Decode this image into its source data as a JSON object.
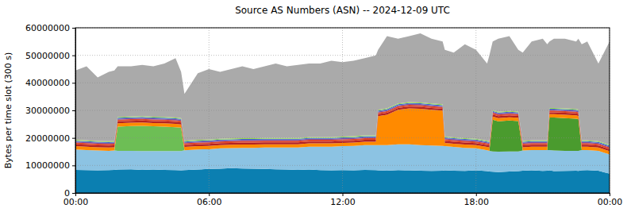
{
  "chart_data": {
    "type": "area",
    "title": "Source AS Numbers (ASN) -- 2024-12-09 UTC",
    "y_label": "Bytes per time slot (300 s)",
    "stacked": true,
    "grid": true,
    "x": [
      0,
      0.5,
      1,
      1.5,
      1.75,
      1.9,
      2.5,
      3,
      3.5,
      4,
      4.5,
      4.75,
      4.9,
      5.5,
      6,
      6.5,
      7,
      7.5,
      8,
      8.5,
      9,
      9.5,
      10,
      10.5,
      11,
      11.5,
      12,
      12.5,
      13,
      13.5,
      13.6,
      14,
      14.5,
      15,
      15.5,
      16,
      16.5,
      16.6,
      17,
      17.5,
      18,
      18.5,
      18.6,
      18.75,
      19,
      19.5,
      19.9,
      20.1,
      20.5,
      21,
      21.2,
      21.3,
      21.5,
      22,
      22.5,
      22.6,
      22.75,
      23,
      23.5,
      24
    ],
    "xlim": [
      0,
      24
    ],
    "xticks": [
      {
        "value": 0,
        "label": "00:00"
      },
      {
        "value": 6,
        "label": "06:00"
      },
      {
        "value": 12,
        "label": "12:00"
      },
      {
        "value": 18,
        "label": "18:00"
      },
      {
        "value": 24,
        "label": "00:00"
      }
    ],
    "ylim": [
      0,
      60000000
    ],
    "yticks": [
      0,
      10000000,
      20000000,
      30000000,
      40000000,
      50000000,
      60000000
    ],
    "series": [
      {
        "color": "#0b7fb1",
        "values": [
          8400000,
          8300000,
          8200000,
          8300000,
          8400000,
          8500000,
          8600000,
          8400000,
          8500000,
          8400000,
          8300000,
          8200000,
          8300000,
          8500000,
          8700000,
          8800000,
          9000000,
          8900000,
          8800000,
          8700000,
          8600000,
          8500000,
          8400000,
          8500000,
          8300000,
          8200000,
          8300000,
          8200000,
          8400000,
          8300000,
          8200000,
          8100000,
          8300000,
          8200000,
          8100000,
          8000000,
          8100000,
          8200000,
          8100000,
          8000000,
          8200000,
          7900000,
          7800000,
          7700000,
          7600000,
          7800000,
          7900000,
          8100000,
          8200000,
          8000000,
          8100000,
          8200000,
          7900000,
          8000000,
          8100000,
          8000000,
          8200000,
          8300000,
          8100000,
          7000000
        ]
      },
      {
        "color": "#8cc3e3",
        "values": [
          7400000,
          7300000,
          7200000,
          7000000,
          7000000,
          6800000,
          6700000,
          6800000,
          6700000,
          6800000,
          6900000,
          7000000,
          7200000,
          7300000,
          7200000,
          7400000,
          7300000,
          7500000,
          7600000,
          7800000,
          7900000,
          8000000,
          8100000,
          8300000,
          8500000,
          8600000,
          8700000,
          8900000,
          9000000,
          9100000,
          9200000,
          9300000,
          9400000,
          9500000,
          9300000,
          9200000,
          9000000,
          8800000,
          8600000,
          8400000,
          8000000,
          7600000,
          7500000,
          7400000,
          7400000,
          7300000,
          7200000,
          7300000,
          7400000,
          7600000,
          7500000,
          7400000,
          7500000,
          7300000,
          7200000,
          7300000,
          7400000,
          7300000,
          7200000,
          7000000
        ]
      },
      {
        "color": "#6dbe55",
        "values": [
          0,
          0,
          0,
          0,
          0,
          8800000,
          9000000,
          9200000,
          9000000,
          8900000,
          8700000,
          8500000,
          0,
          0,
          0,
          0,
          0,
          0,
          0,
          0,
          0,
          0,
          0,
          0,
          0,
          0,
          0,
          0,
          0,
          0,
          0,
          0,
          0,
          0,
          0,
          0,
          0,
          0,
          0,
          0,
          0,
          0,
          0,
          0,
          0,
          0,
          0,
          0,
          0,
          0,
          0,
          0,
          0,
          0,
          0,
          0,
          0,
          0,
          0,
          0
        ]
      },
      {
        "color": "#4a9b2e",
        "values": [
          0,
          0,
          0,
          0,
          0,
          0,
          0,
          0,
          0,
          0,
          0,
          0,
          0,
          0,
          0,
          0,
          0,
          0,
          0,
          0,
          0,
          0,
          0,
          0,
          0,
          0,
          0,
          0,
          0,
          0,
          0,
          0,
          0,
          0,
          0,
          0,
          0,
          0,
          0,
          0,
          0,
          0,
          0,
          11500000,
          11000000,
          11200000,
          11000000,
          0,
          0,
          0,
          0,
          11800000,
          12000000,
          11900000,
          11700000,
          11500000,
          0,
          0,
          0,
          0
        ]
      },
      {
        "color": "#ff8a00",
        "values": [
          1200000,
          1200000,
          1200000,
          1200000,
          1200000,
          1200000,
          1200000,
          1200000,
          1200000,
          1200000,
          1200000,
          1200000,
          1200000,
          1200000,
          1200000,
          1200000,
          1200000,
          1200000,
          1200000,
          1200000,
          1200000,
          1200000,
          1200000,
          1200000,
          1200000,
          1200000,
          1200000,
          1200000,
          1200000,
          1200000,
          10500000,
          11000000,
          12500000,
          13000000,
          13200000,
          13000000,
          12800000,
          1200000,
          1200000,
          1200000,
          1200000,
          1200000,
          1200000,
          1200000,
          1200000,
          1200000,
          1200000,
          1200000,
          1200000,
          1200000,
          1200000,
          1200000,
          1200000,
          1200000,
          1200000,
          1200000,
          1200000,
          1200000,
          1200000,
          1200000
        ]
      },
      {
        "color": "#b22222",
        "values": [
          700000,
          700000,
          700000,
          700000,
          700000,
          700000,
          700000,
          700000,
          700000,
          700000,
          700000,
          700000,
          700000,
          700000,
          700000,
          700000,
          700000,
          700000,
          700000,
          700000,
          700000,
          700000,
          700000,
          700000,
          700000,
          700000,
          700000,
          700000,
          700000,
          700000,
          700000,
          700000,
          700000,
          700000,
          700000,
          700000,
          700000,
          700000,
          700000,
          700000,
          700000,
          700000,
          700000,
          700000,
          700000,
          700000,
          700000,
          700000,
          700000,
          700000,
          700000,
          700000,
          700000,
          700000,
          700000,
          700000,
          700000,
          700000,
          700000,
          700000
        ]
      },
      {
        "color": "#e0452b",
        "values": [
          600000,
          600000,
          600000,
          600000,
          600000,
          600000,
          600000,
          600000,
          600000,
          600000,
          600000,
          600000,
          600000,
          600000,
          600000,
          600000,
          600000,
          600000,
          600000,
          600000,
          600000,
          600000,
          600000,
          600000,
          600000,
          600000,
          600000,
          600000,
          600000,
          600000,
          600000,
          600000,
          600000,
          600000,
          600000,
          600000,
          600000,
          600000,
          600000,
          600000,
          600000,
          600000,
          600000,
          600000,
          600000,
          600000,
          600000,
          600000,
          600000,
          600000,
          600000,
          600000,
          600000,
          600000,
          600000,
          600000,
          600000,
          600000,
          600000,
          600000
        ]
      },
      {
        "color": "#7b4fa0",
        "values": [
          400000,
          400000,
          400000,
          400000,
          400000,
          400000,
          400000,
          400000,
          400000,
          400000,
          400000,
          400000,
          400000,
          400000,
          400000,
          400000,
          400000,
          400000,
          400000,
          400000,
          400000,
          400000,
          400000,
          400000,
          400000,
          400000,
          400000,
          400000,
          400000,
          400000,
          400000,
          400000,
          400000,
          400000,
          400000,
          400000,
          400000,
          400000,
          400000,
          400000,
          400000,
          400000,
          400000,
          400000,
          400000,
          400000,
          400000,
          400000,
          400000,
          400000,
          400000,
          400000,
          400000,
          400000,
          400000,
          400000,
          400000,
          400000,
          400000,
          400000
        ]
      },
      {
        "color": "#3b6fd6",
        "values": [
          300000,
          300000,
          300000,
          300000,
          300000,
          300000,
          300000,
          300000,
          300000,
          300000,
          300000,
          300000,
          300000,
          300000,
          300000,
          300000,
          300000,
          300000,
          300000,
          300000,
          300000,
          300000,
          300000,
          300000,
          300000,
          300000,
          300000,
          300000,
          300000,
          300000,
          300000,
          300000,
          300000,
          300000,
          300000,
          300000,
          300000,
          300000,
          300000,
          300000,
          300000,
          300000,
          300000,
          300000,
          300000,
          300000,
          300000,
          300000,
          300000,
          300000,
          300000,
          300000,
          300000,
          300000,
          300000,
          300000,
          300000,
          300000,
          300000,
          300000
        ]
      },
      {
        "color": "#9ad94a",
        "values": [
          300000,
          300000,
          300000,
          300000,
          300000,
          300000,
          300000,
          300000,
          300000,
          300000,
          300000,
          300000,
          300000,
          300000,
          300000,
          300000,
          300000,
          300000,
          300000,
          300000,
          300000,
          300000,
          300000,
          300000,
          300000,
          300000,
          300000,
          300000,
          300000,
          300000,
          300000,
          300000,
          300000,
          300000,
          300000,
          300000,
          300000,
          300000,
          300000,
          300000,
          300000,
          300000,
          300000,
          300000,
          300000,
          300000,
          300000,
          300000,
          300000,
          300000,
          300000,
          300000,
          300000,
          300000,
          300000,
          300000,
          300000,
          300000,
          300000,
          300000
        ]
      },
      {
        "color": "#aaaaaa",
        "values": [
          25200000,
          26900000,
          23100000,
          25200000,
          25600000,
          18400000,
          18200000,
          18600000,
          18300000,
          19400000,
          21600000,
          16800000,
          17000000,
          24200000,
          25600000,
          24300000,
          25200000,
          26100000,
          25100000,
          26000000,
          27000000,
          26000000,
          26500000,
          26700000,
          26700000,
          27700000,
          27000000,
          27400000,
          28100000,
          29100000,
          21800000,
          26300000,
          23500000,
          24000000,
          25100000,
          23500000,
          22800000,
          31500000,
          30800000,
          34100000,
          32300000,
          28000000,
          31200000,
          24900000,
          26500000,
          27200000,
          22400000,
          32100000,
          35900000,
          36900000,
          34900000,
          24100000,
          25100000,
          25300000,
          24500000,
          25700000,
          34900000,
          35900000,
          28200000,
          37500000
        ]
      }
    ]
  }
}
